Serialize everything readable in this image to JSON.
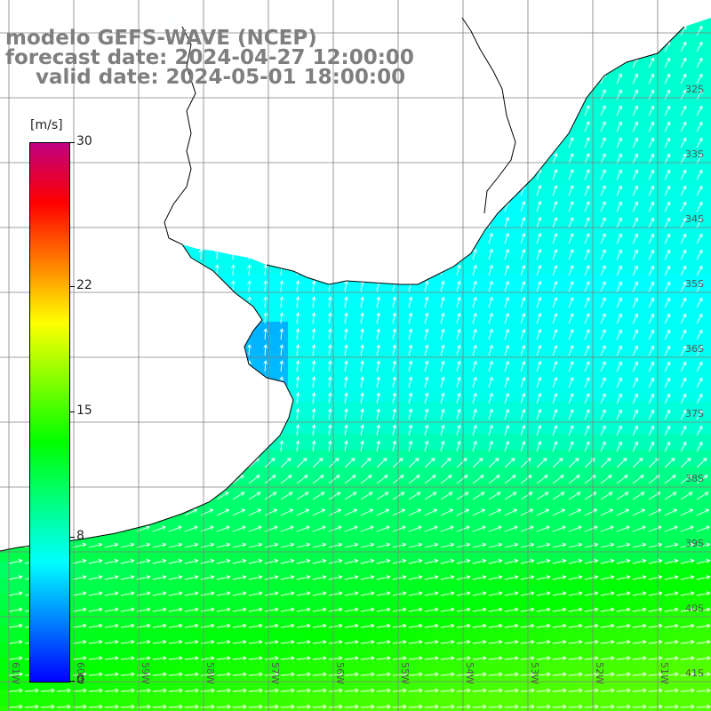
{
  "title": {
    "model": "modelo GEFS-WAVE (NCEP)",
    "forecast": "forecast date: 2024-04-27 12:00:00",
    "valid": "valid date: 2024-05-01 18:00:00"
  },
  "colorbar": {
    "unit": "[m/s]",
    "min": 0,
    "max": 30,
    "ticks": [
      {
        "label": "30",
        "value": 30
      },
      {
        "label": "22",
        "value": 22
      },
      {
        "label": "15",
        "value": 15
      },
      {
        "label": "8",
        "value": 8
      },
      {
        "label": "0",
        "value": 0
      }
    ],
    "stops": [
      "#0000ff",
      "#0080ff",
      "#00ffff",
      "#00ff80",
      "#00ff00",
      "#80ff00",
      "#ffff00",
      "#ff8000",
      "#ff0000",
      "#c00080"
    ]
  },
  "map": {
    "lon_range": [
      -61.0,
      -50.5
    ],
    "lat_range": [
      -41.5,
      -31.0
    ],
    "lon_labels": [
      "61W",
      "60W",
      "59W",
      "58W",
      "57W",
      "56W",
      "55W",
      "54W",
      "53W",
      "52W",
      "51W"
    ],
    "lat_labels": [
      "32S",
      "33S",
      "34S",
      "35S",
      "36S",
      "37S",
      "38S",
      "39S",
      "40S",
      "41S"
    ],
    "grid_color": "#808080",
    "coast_color": "#000000",
    "land_color": "#ffffff",
    "arrow_color": "#ffffff"
  }
}
